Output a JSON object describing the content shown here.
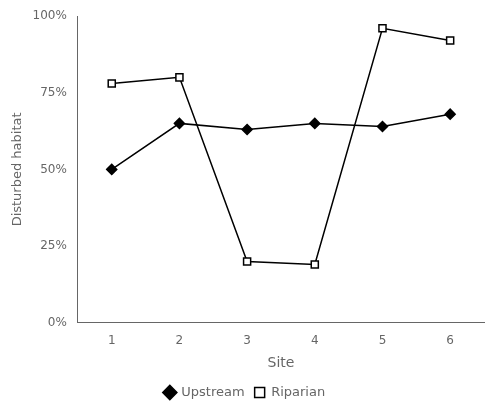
{
  "chart_data": {
    "type": "line",
    "x": [
      1,
      2,
      3,
      4,
      5,
      6
    ],
    "series": [
      {
        "name": "Upstream",
        "color": "#000000",
        "marker": "diamond",
        "values": [
          0.5,
          0.65,
          0.63,
          0.65,
          0.64,
          0.68
        ]
      },
      {
        "name": "Riparian",
        "color": "#000000",
        "marker": "open_square",
        "values": [
          0.78,
          0.8,
          0.2,
          0.19,
          0.96,
          0.92
        ]
      }
    ],
    "xlabel": "Site",
    "ylabel": "Disturbed habitat",
    "xlim": [
      0.5,
      6.5
    ],
    "xticks": [
      1,
      2,
      3,
      4,
      5,
      6
    ],
    "ylim": [
      0.0,
      1.0
    ],
    "yticks": [
      {
        "value": 0.0,
        "label": "0%"
      },
      {
        "value": 0.25,
        "label": "25%"
      },
      {
        "value": 0.5,
        "label": "50%"
      },
      {
        "value": 0.75,
        "label": "75%"
      },
      {
        "value": 1.0,
        "label": "100%"
      }
    ],
    "grid": false,
    "legend": "bottom"
  }
}
